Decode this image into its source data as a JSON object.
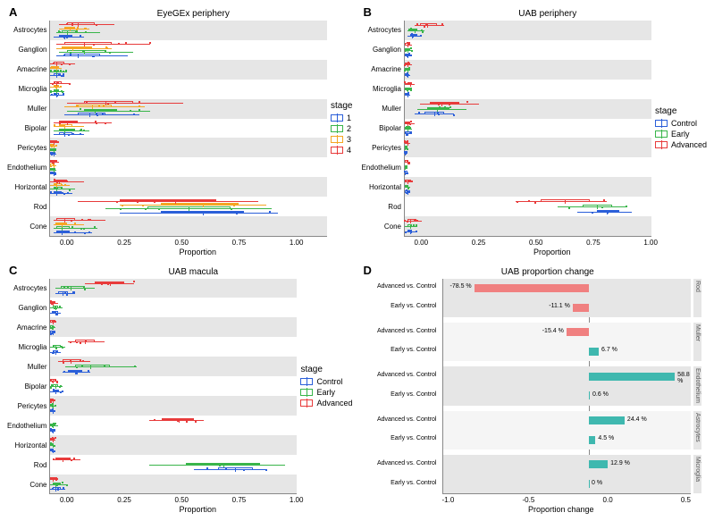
{
  "colors": {
    "stage1": "#2b5fd9",
    "stage2": "#39b54a",
    "stage3": "#f5a623",
    "stage4": "#e83b3b",
    "control": "#2b5fd9",
    "early": "#39b54a",
    "advanced": "#e83b3b",
    "band": "#e6e6e6",
    "barPos": "#3fb8af",
    "barNeg": "#f08080"
  },
  "axis": {
    "xlabel": "Proportion",
    "xlabelD": "Proportion change"
  },
  "panelA": {
    "letter": "A",
    "title": "EyeGEx periphery",
    "xlim": [
      0,
      1
    ],
    "xticks": [
      "0.00",
      "0.25",
      "0.50",
      "0.75",
      "1.00"
    ],
    "categories": [
      "Astrocytes",
      "Ganglion",
      "Amacrine",
      "Microglia",
      "Muller",
      "Bipolar",
      "Pericytes",
      "Endothelium",
      "Horizontal",
      "Rod",
      "Cone"
    ],
    "legend": {
      "title": "stage",
      "items": [
        "1",
        "2",
        "3",
        "4"
      ]
    },
    "series": {
      "Astrocytes": {
        "1": {
          "q1": 0.03,
          "med": 0.05,
          "q3": 0.08,
          "lo": 0.01,
          "hi": 0.12
        },
        "2": {
          "q1": 0.04,
          "med": 0.06,
          "q3": 0.1,
          "lo": 0.02,
          "hi": 0.18
        },
        "3": {
          "q1": 0.05,
          "med": 0.07,
          "q3": 0.09,
          "lo": 0.03,
          "hi": 0.14
        },
        "4": {
          "q1": 0.06,
          "med": 0.1,
          "q3": 0.16,
          "lo": 0.03,
          "hi": 0.23
        }
      },
      "Ganglion": {
        "1": {
          "q1": 0.05,
          "med": 0.1,
          "q3": 0.18,
          "lo": 0.02,
          "hi": 0.28
        },
        "2": {
          "q1": 0.06,
          "med": 0.12,
          "q3": 0.2,
          "lo": 0.03,
          "hi": 0.3
        },
        "3": {
          "q1": 0.04,
          "med": 0.08,
          "q3": 0.15,
          "lo": 0.02,
          "hi": 0.22
        },
        "4": {
          "q1": 0.05,
          "med": 0.12,
          "q3": 0.22,
          "lo": 0.02,
          "hi": 0.36
        }
      },
      "Amacrine": {
        "1": {
          "q1": 0.01,
          "med": 0.02,
          "q3": 0.03,
          "lo": 0.0,
          "hi": 0.05
        },
        "2": {
          "q1": 0.01,
          "med": 0.02,
          "q3": 0.03,
          "lo": 0.0,
          "hi": 0.06
        },
        "3": {
          "q1": 0.01,
          "med": 0.02,
          "q3": 0.03,
          "lo": 0.0,
          "hi": 0.04
        },
        "4": {
          "q1": 0.01,
          "med": 0.02,
          "q3": 0.05,
          "lo": 0.0,
          "hi": 0.09
        }
      },
      "Microglia": {
        "1": {
          "q1": 0.01,
          "med": 0.02,
          "q3": 0.03,
          "lo": 0.0,
          "hi": 0.05
        },
        "2": {
          "q1": 0.01,
          "med": 0.02,
          "q3": 0.03,
          "lo": 0.0,
          "hi": 0.05
        },
        "3": {
          "q1": 0.01,
          "med": 0.02,
          "q3": 0.03,
          "lo": 0.0,
          "hi": 0.04
        },
        "4": {
          "q1": 0.01,
          "med": 0.02,
          "q3": 0.04,
          "lo": 0.0,
          "hi": 0.07
        }
      },
      "Muller": {
        "1": {
          "q1": 0.1,
          "med": 0.14,
          "q3": 0.2,
          "lo": 0.05,
          "hi": 0.32
        },
        "2": {
          "q1": 0.12,
          "med": 0.16,
          "q3": 0.24,
          "lo": 0.06,
          "hi": 0.36
        },
        "3": {
          "q1": 0.1,
          "med": 0.15,
          "q3": 0.22,
          "lo": 0.05,
          "hi": 0.34
        },
        "4": {
          "q1": 0.12,
          "med": 0.2,
          "q3": 0.3,
          "lo": 0.06,
          "hi": 0.48
        }
      },
      "Bipolar": {
        "1": {
          "q1": 0.03,
          "med": 0.05,
          "q3": 0.08,
          "lo": 0.01,
          "hi": 0.12
        },
        "2": {
          "q1": 0.03,
          "med": 0.05,
          "q3": 0.09,
          "lo": 0.01,
          "hi": 0.14
        },
        "3": {
          "q1": 0.03,
          "med": 0.05,
          "q3": 0.08,
          "lo": 0.01,
          "hi": 0.12
        },
        "4": {
          "q1": 0.03,
          "med": 0.06,
          "q3": 0.1,
          "lo": 0.01,
          "hi": 0.22
        }
      },
      "Pericytes": {
        "1": {
          "q1": 0.0,
          "med": 0.01,
          "q3": 0.01,
          "lo": 0.0,
          "hi": 0.02
        },
        "2": {
          "q1": 0.0,
          "med": 0.01,
          "q3": 0.01,
          "lo": 0.0,
          "hi": 0.02
        },
        "3": {
          "q1": 0.0,
          "med": 0.01,
          "q3": 0.01,
          "lo": 0.0,
          "hi": 0.02
        },
        "4": {
          "q1": 0.0,
          "med": 0.01,
          "q3": 0.02,
          "lo": 0.0,
          "hi": 0.03
        }
      },
      "Endothelium": {
        "1": {
          "q1": 0.0,
          "med": 0.01,
          "q3": 0.01,
          "lo": 0.0,
          "hi": 0.02
        },
        "2": {
          "q1": 0.0,
          "med": 0.01,
          "q3": 0.01,
          "lo": 0.0,
          "hi": 0.02
        },
        "3": {
          "q1": 0.0,
          "med": 0.01,
          "q3": 0.01,
          "lo": 0.0,
          "hi": 0.02
        },
        "4": {
          "q1": 0.0,
          "med": 0.01,
          "q3": 0.02,
          "lo": 0.0,
          "hi": 0.03
        }
      },
      "Horizontal": {
        "1": {
          "q1": 0.01,
          "med": 0.02,
          "q3": 0.04,
          "lo": 0.0,
          "hi": 0.08
        },
        "2": {
          "q1": 0.01,
          "med": 0.02,
          "q3": 0.04,
          "lo": 0.0,
          "hi": 0.09
        },
        "3": {
          "q1": 0.01,
          "med": 0.02,
          "q3": 0.04,
          "lo": 0.0,
          "hi": 0.07
        },
        "4": {
          "q1": 0.01,
          "med": 0.03,
          "q3": 0.06,
          "lo": 0.0,
          "hi": 0.12
        }
      },
      "Rod": {
        "1": {
          "q1": 0.4,
          "med": 0.55,
          "q3": 0.7,
          "lo": 0.25,
          "hi": 0.82
        },
        "2": {
          "q1": 0.35,
          "med": 0.5,
          "q3": 0.65,
          "lo": 0.2,
          "hi": 0.8
        },
        "3": {
          "q1": 0.4,
          "med": 0.55,
          "q3": 0.68,
          "lo": 0.25,
          "hi": 0.78
        },
        "4": {
          "q1": 0.25,
          "med": 0.45,
          "q3": 0.6,
          "lo": 0.1,
          "hi": 0.75
        }
      },
      "Cone": {
        "1": {
          "q1": 0.02,
          "med": 0.04,
          "q3": 0.07,
          "lo": 0.01,
          "hi": 0.15
        },
        "2": {
          "q1": 0.02,
          "med": 0.04,
          "q3": 0.07,
          "lo": 0.01,
          "hi": 0.17
        },
        "3": {
          "q1": 0.02,
          "med": 0.04,
          "q3": 0.06,
          "lo": 0.01,
          "hi": 0.12
        },
        "4": {
          "q1": 0.02,
          "med": 0.05,
          "q3": 0.09,
          "lo": 0.01,
          "hi": 0.2
        }
      }
    }
  },
  "panelB": {
    "letter": "B",
    "title": "UAB periphery",
    "xlim": [
      0,
      1
    ],
    "xticks": [
      "0.00",
      "0.25",
      "0.50",
      "0.75",
      "1.00"
    ],
    "categories": [
      "Astrocytes",
      "Ganglion",
      "Amacrine",
      "Microglia",
      "Muller",
      "Bipolar",
      "Pericytes",
      "Endothelium",
      "Horizontal",
      "Rod",
      "Cone"
    ],
    "legend": {
      "title": "stage",
      "items": [
        "Control",
        "Early",
        "Advanced"
      ]
    },
    "series": {
      "Astrocytes": {
        "Control": {
          "q1": 0.02,
          "med": 0.03,
          "q3": 0.05,
          "lo": 0.01,
          "hi": 0.07
        },
        "Early": {
          "q1": 0.02,
          "med": 0.04,
          "q3": 0.05,
          "lo": 0.01,
          "hi": 0.08
        },
        "Advanced": {
          "q1": 0.06,
          "med": 0.09,
          "q3": 0.13,
          "lo": 0.04,
          "hi": 0.16
        }
      },
      "Ganglion": {
        "Control": {
          "q1": 0.0,
          "med": 0.01,
          "q3": 0.02,
          "lo": 0.0,
          "hi": 0.03
        },
        "Early": {
          "q1": 0.0,
          "med": 0.01,
          "q3": 0.02,
          "lo": 0.0,
          "hi": 0.03
        },
        "Advanced": {
          "q1": 0.0,
          "med": 0.01,
          "q3": 0.02,
          "lo": 0.0,
          "hi": 0.03
        }
      },
      "Amacrine": {
        "Control": {
          "q1": 0.0,
          "med": 0.01,
          "q3": 0.01,
          "lo": 0.0,
          "hi": 0.02
        },
        "Early": {
          "q1": 0.0,
          "med": 0.01,
          "q3": 0.01,
          "lo": 0.0,
          "hi": 0.02
        },
        "Advanced": {
          "q1": 0.0,
          "med": 0.01,
          "q3": 0.02,
          "lo": 0.0,
          "hi": 0.03
        }
      },
      "Microglia": {
        "Control": {
          "q1": 0.0,
          "med": 0.01,
          "q3": 0.01,
          "lo": 0.0,
          "hi": 0.02
        },
        "Early": {
          "q1": 0.0,
          "med": 0.01,
          "q3": 0.02,
          "lo": 0.0,
          "hi": 0.03
        },
        "Advanced": {
          "q1": 0.01,
          "med": 0.02,
          "q3": 0.03,
          "lo": 0.0,
          "hi": 0.04
        }
      },
      "Muller": {
        "Control": {
          "q1": 0.08,
          "med": 0.12,
          "q3": 0.16,
          "lo": 0.04,
          "hi": 0.2
        },
        "Early": {
          "q1": 0.09,
          "med": 0.13,
          "q3": 0.18,
          "lo": 0.05,
          "hi": 0.25
        },
        "Advanced": {
          "q1": 0.1,
          "med": 0.15,
          "q3": 0.22,
          "lo": 0.06,
          "hi": 0.3
        }
      },
      "Bipolar": {
        "Control": {
          "q1": 0.0,
          "med": 0.01,
          "q3": 0.02,
          "lo": 0.0,
          "hi": 0.03
        },
        "Early": {
          "q1": 0.0,
          "med": 0.01,
          "q3": 0.02,
          "lo": 0.0,
          "hi": 0.03
        },
        "Advanced": {
          "q1": 0.0,
          "med": 0.01,
          "q3": 0.02,
          "lo": 0.0,
          "hi": 0.04
        }
      },
      "Pericytes": {
        "Control": {
          "q1": 0.0,
          "med": 0.0,
          "q3": 0.01,
          "lo": 0.0,
          "hi": 0.01
        },
        "Early": {
          "q1": 0.0,
          "med": 0.0,
          "q3": 0.01,
          "lo": 0.0,
          "hi": 0.01
        },
        "Advanced": {
          "q1": 0.0,
          "med": 0.01,
          "q3": 0.01,
          "lo": 0.0,
          "hi": 0.02
        }
      },
      "Endothelium": {
        "Control": {
          "q1": 0.0,
          "med": 0.0,
          "q3": 0.01,
          "lo": 0.0,
          "hi": 0.01
        },
        "Early": {
          "q1": 0.0,
          "med": 0.0,
          "q3": 0.01,
          "lo": 0.0,
          "hi": 0.01
        },
        "Advanced": {
          "q1": 0.0,
          "med": 0.01,
          "q3": 0.01,
          "lo": 0.0,
          "hi": 0.02
        }
      },
      "Horizontal": {
        "Control": {
          "q1": 0.0,
          "med": 0.01,
          "q3": 0.01,
          "lo": 0.0,
          "hi": 0.02
        },
        "Early": {
          "q1": 0.0,
          "med": 0.01,
          "q3": 0.01,
          "lo": 0.0,
          "hi": 0.02
        },
        "Advanced": {
          "q1": 0.0,
          "med": 0.01,
          "q3": 0.02,
          "lo": 0.0,
          "hi": 0.03
        }
      },
      "Rod": {
        "Control": {
          "q1": 0.78,
          "med": 0.82,
          "q3": 0.87,
          "lo": 0.7,
          "hi": 0.92
        },
        "Early": {
          "q1": 0.72,
          "med": 0.78,
          "q3": 0.84,
          "lo": 0.62,
          "hi": 0.9
        },
        "Advanced": {
          "q1": 0.55,
          "med": 0.65,
          "q3": 0.75,
          "lo": 0.45,
          "hi": 0.82
        }
      },
      "Cone": {
        "Control": {
          "q1": 0.01,
          "med": 0.02,
          "q3": 0.03,
          "lo": 0.0,
          "hi": 0.05
        },
        "Early": {
          "q1": 0.01,
          "med": 0.02,
          "q3": 0.03,
          "lo": 0.0,
          "hi": 0.05
        },
        "Advanced": {
          "q1": 0.01,
          "med": 0.02,
          "q3": 0.04,
          "lo": 0.0,
          "hi": 0.07
        }
      }
    }
  },
  "panelC": {
    "letter": "C",
    "title": "UAB macula",
    "xlim": [
      0,
      1
    ],
    "xticks": [
      "0.00",
      "0.25",
      "0.50",
      "0.75",
      "1.00"
    ],
    "categories": [
      "Astrocytes",
      "Ganglion",
      "Amacrine",
      "Microglia",
      "Muller",
      "Bipolar",
      "Pericytes",
      "Endothelium",
      "Horizontal",
      "Rod",
      "Cone"
    ],
    "legend": {
      "title": "stage",
      "items": [
        "Control",
        "Early",
        "Advanced"
      ]
    },
    "series": {
      "Astrocytes": {
        "Control": {
          "q1": 0.03,
          "med": 0.05,
          "q3": 0.07,
          "lo": 0.02,
          "hi": 0.1
        },
        "Early": {
          "q1": 0.04,
          "med": 0.08,
          "q3": 0.14,
          "lo": 0.02,
          "hi": 0.18
        },
        "Advanced": {
          "q1": 0.18,
          "med": 0.24,
          "q3": 0.3,
          "lo": 0.14,
          "hi": 0.34
        }
      },
      "Ganglion": {
        "Control": {
          "q1": 0.01,
          "med": 0.02,
          "q3": 0.03,
          "lo": 0.0,
          "hi": 0.04
        },
        "Early": {
          "q1": 0.01,
          "med": 0.02,
          "q3": 0.03,
          "lo": 0.0,
          "hi": 0.05
        },
        "Advanced": {
          "q1": 0.0,
          "med": 0.01,
          "q3": 0.02,
          "lo": 0.0,
          "hi": 0.03
        }
      },
      "Amacrine": {
        "Control": {
          "q1": 0.0,
          "med": 0.01,
          "q3": 0.01,
          "lo": 0.0,
          "hi": 0.02
        },
        "Early": {
          "q1": 0.0,
          "med": 0.01,
          "q3": 0.01,
          "lo": 0.0,
          "hi": 0.02
        },
        "Advanced": {
          "q1": 0.0,
          "med": 0.01,
          "q3": 0.01,
          "lo": 0.0,
          "hi": 0.02
        }
      },
      "Microglia": {
        "Control": {
          "q1": 0.01,
          "med": 0.02,
          "q3": 0.03,
          "lo": 0.0,
          "hi": 0.04
        },
        "Early": {
          "q1": 0.01,
          "med": 0.02,
          "q3": 0.04,
          "lo": 0.0,
          "hi": 0.06
        },
        "Advanced": {
          "q1": 0.1,
          "med": 0.14,
          "q3": 0.18,
          "lo": 0.07,
          "hi": 0.22
        }
      },
      "Muller": {
        "Control": {
          "q1": 0.07,
          "med": 0.1,
          "q3": 0.13,
          "lo": 0.05,
          "hi": 0.16
        },
        "Early": {
          "q1": 0.1,
          "med": 0.16,
          "q3": 0.24,
          "lo": 0.06,
          "hi": 0.35
        },
        "Advanced": {
          "q1": 0.05,
          "med": 0.08,
          "q3": 0.12,
          "lo": 0.03,
          "hi": 0.16
        }
      },
      "Bipolar": {
        "Control": {
          "q1": 0.01,
          "med": 0.02,
          "q3": 0.03,
          "lo": 0.0,
          "hi": 0.05
        },
        "Early": {
          "q1": 0.01,
          "med": 0.02,
          "q3": 0.03,
          "lo": 0.0,
          "hi": 0.05
        },
        "Advanced": {
          "q1": 0.0,
          "med": 0.01,
          "q3": 0.02,
          "lo": 0.0,
          "hi": 0.03
        }
      },
      "Pericytes": {
        "Control": {
          "q1": 0.0,
          "med": 0.01,
          "q3": 0.01,
          "lo": 0.0,
          "hi": 0.02
        },
        "Early": {
          "q1": 0.0,
          "med": 0.01,
          "q3": 0.01,
          "lo": 0.0,
          "hi": 0.02
        },
        "Advanced": {
          "q1": 0.0,
          "med": 0.01,
          "q3": 0.01,
          "lo": 0.0,
          "hi": 0.02
        }
      },
      "Endothelium": {
        "Control": {
          "q1": 0.0,
          "med": 0.01,
          "q3": 0.01,
          "lo": 0.0,
          "hi": 0.02
        },
        "Early": {
          "q1": 0.0,
          "med": 0.01,
          "q3": 0.02,
          "lo": 0.0,
          "hi": 0.03
        },
        "Advanced": {
          "q1": 0.45,
          "med": 0.52,
          "q3": 0.58,
          "lo": 0.4,
          "hi": 0.62
        }
      },
      "Horizontal": {
        "Control": {
          "q1": 0.0,
          "med": 0.01,
          "q3": 0.01,
          "lo": 0.0,
          "hi": 0.02
        },
        "Early": {
          "q1": 0.0,
          "med": 0.01,
          "q3": 0.01,
          "lo": 0.0,
          "hi": 0.02
        },
        "Advanced": {
          "q1": 0.0,
          "med": 0.01,
          "q3": 0.01,
          "lo": 0.0,
          "hi": 0.02
        }
      },
      "Rod": {
        "Control": {
          "q1": 0.68,
          "med": 0.75,
          "q3": 0.82,
          "lo": 0.58,
          "hi": 0.88
        },
        "Early": {
          "q1": 0.55,
          "med": 0.7,
          "q3": 0.85,
          "lo": 0.4,
          "hi": 0.95
        },
        "Advanced": {
          "q1": 0.02,
          "med": 0.05,
          "q3": 0.08,
          "lo": 0.01,
          "hi": 0.12
        }
      },
      "Cone": {
        "Control": {
          "q1": 0.01,
          "med": 0.02,
          "q3": 0.04,
          "lo": 0.0,
          "hi": 0.06
        },
        "Early": {
          "q1": 0.01,
          "med": 0.02,
          "q3": 0.04,
          "lo": 0.0,
          "hi": 0.07
        },
        "Advanced": {
          "q1": 0.0,
          "med": 0.01,
          "q3": 0.02,
          "lo": 0.0,
          "hi": 0.03
        }
      }
    }
  },
  "panelD": {
    "letter": "D",
    "title": "UAB proportion change",
    "xlim": [
      -1.0,
      0.7
    ],
    "xticks": [
      "-1.0",
      "-0.5",
      "0.0",
      "0.5"
    ],
    "groups": [
      {
        "name": "Rod",
        "rows": [
          {
            "label": "Advanced vs. Control",
            "value": -0.785,
            "text": "-78.5 %"
          },
          {
            "label": "Early vs. Control",
            "value": -0.111,
            "text": "-11.1 %"
          }
        ]
      },
      {
        "name": "Muller",
        "rows": [
          {
            "label": "Advanced vs. Control",
            "value": -0.154,
            "text": "-15.4 %"
          },
          {
            "label": "Early vs. Control",
            "value": 0.067,
            "text": "6.7 %"
          }
        ]
      },
      {
        "name": "Endothelium",
        "rows": [
          {
            "label": "Advanced vs. Control",
            "value": 0.588,
            "text": "58.8 %"
          },
          {
            "label": "Early vs. Control",
            "value": 0.006,
            "text": "0.6 %"
          }
        ]
      },
      {
        "name": "Astrocytes",
        "rows": [
          {
            "label": "Advanced vs. Control",
            "value": 0.244,
            "text": "24.4 %"
          },
          {
            "label": "Early vs. Control",
            "value": 0.045,
            "text": "4.5 %"
          }
        ]
      },
      {
        "name": "Microglia",
        "rows": [
          {
            "label": "Advanced vs. Control",
            "value": 0.129,
            "text": "12.9 %"
          },
          {
            "label": "Early vs. Control",
            "value": 0.0,
            "text": "0 %"
          }
        ]
      }
    ]
  }
}
